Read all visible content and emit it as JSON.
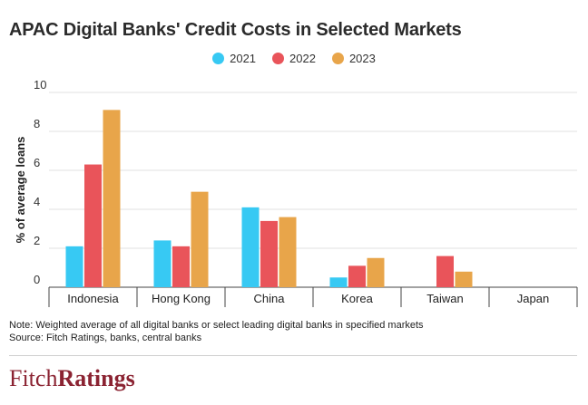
{
  "chart_data": {
    "type": "bar",
    "title": "APAC Digital Banks' Credit Costs in Selected Markets",
    "ylabel": "% of average loans",
    "xlabel": "",
    "ylim": [
      0,
      10
    ],
    "yticks": [
      0,
      2,
      4,
      6,
      8,
      10
    ],
    "grid": true,
    "legend_position": "top-center",
    "categories": [
      "Indonesia",
      "Hong Kong",
      "China",
      "Korea",
      "Taiwan",
      "Japan"
    ],
    "series": [
      {
        "name": "2021",
        "color": "#37c9f3",
        "values": [
          2.1,
          2.4,
          4.1,
          0.5,
          null,
          null
        ]
      },
      {
        "name": "2022",
        "color": "#e9545a",
        "values": [
          6.3,
          2.1,
          3.4,
          1.1,
          1.6,
          null
        ]
      },
      {
        "name": "2023",
        "color": "#e8a54a",
        "values": [
          9.1,
          4.9,
          3.6,
          1.5,
          0.8,
          null
        ]
      }
    ]
  },
  "note": "Note: Weighted average of all digital banks or select leading digital banks in specified markets",
  "source": "Source: Fitch Ratings, banks, central banks",
  "logo": {
    "part1": "Fitch",
    "part2": "Ratings"
  }
}
